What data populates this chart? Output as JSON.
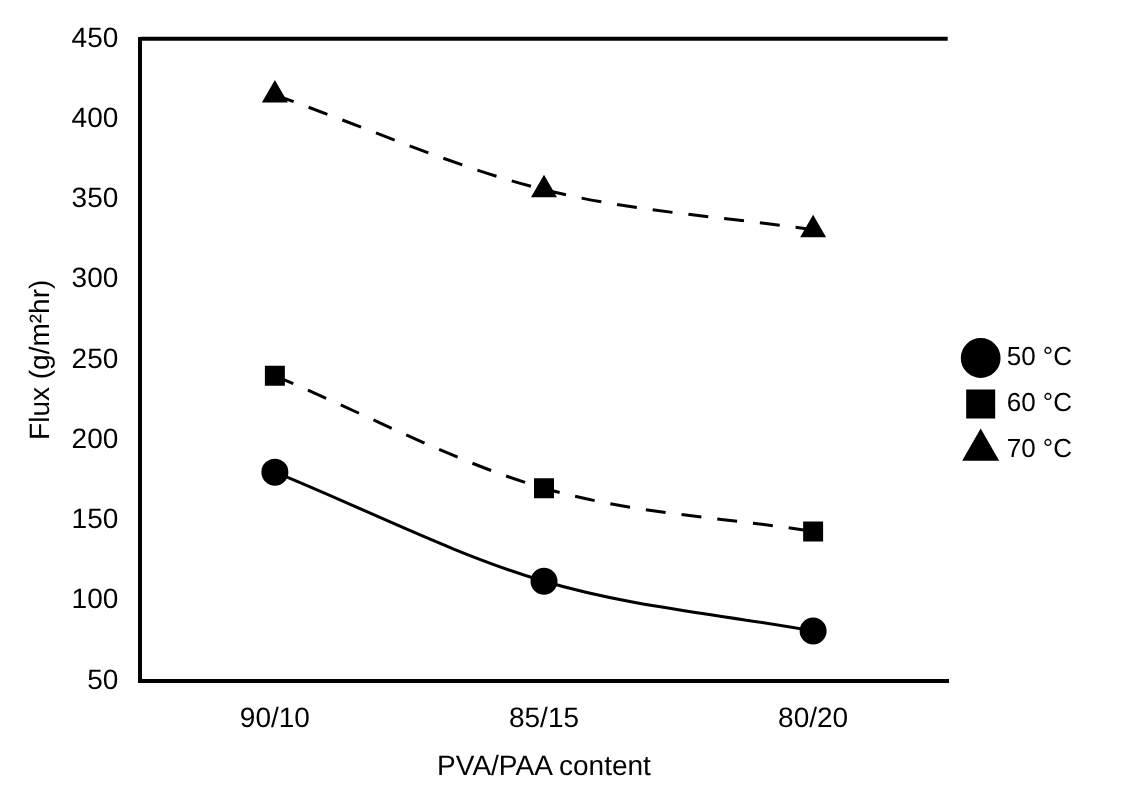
{
  "chart_data": {
    "type": "line",
    "xlabel": "PVA/PAA content",
    "ylabel": "Flux (g/m²hr)",
    "categories": [
      "90/10",
      "85/15",
      "80/20"
    ],
    "series": [
      {
        "name": "50 °C",
        "color": "#000000",
        "values": [
          180,
          112,
          81
        ],
        "marker": "circle",
        "line_style": "solid"
      },
      {
        "name": "60 °C",
        "color": "#000000",
        "values": [
          240,
          170,
          143
        ],
        "marker": "square",
        "line_style": "dashed"
      },
      {
        "name": "70 °C",
        "color": "#000000",
        "values": [
          415,
          356,
          331
        ],
        "marker": "triangle",
        "line_style": "dashed"
      }
    ],
    "ylim": [
      50,
      450
    ],
    "yticks": [
      50,
      100,
      150,
      200,
      250,
      300,
      350,
      400,
      450
    ],
    "grid": false,
    "legend": "right"
  }
}
